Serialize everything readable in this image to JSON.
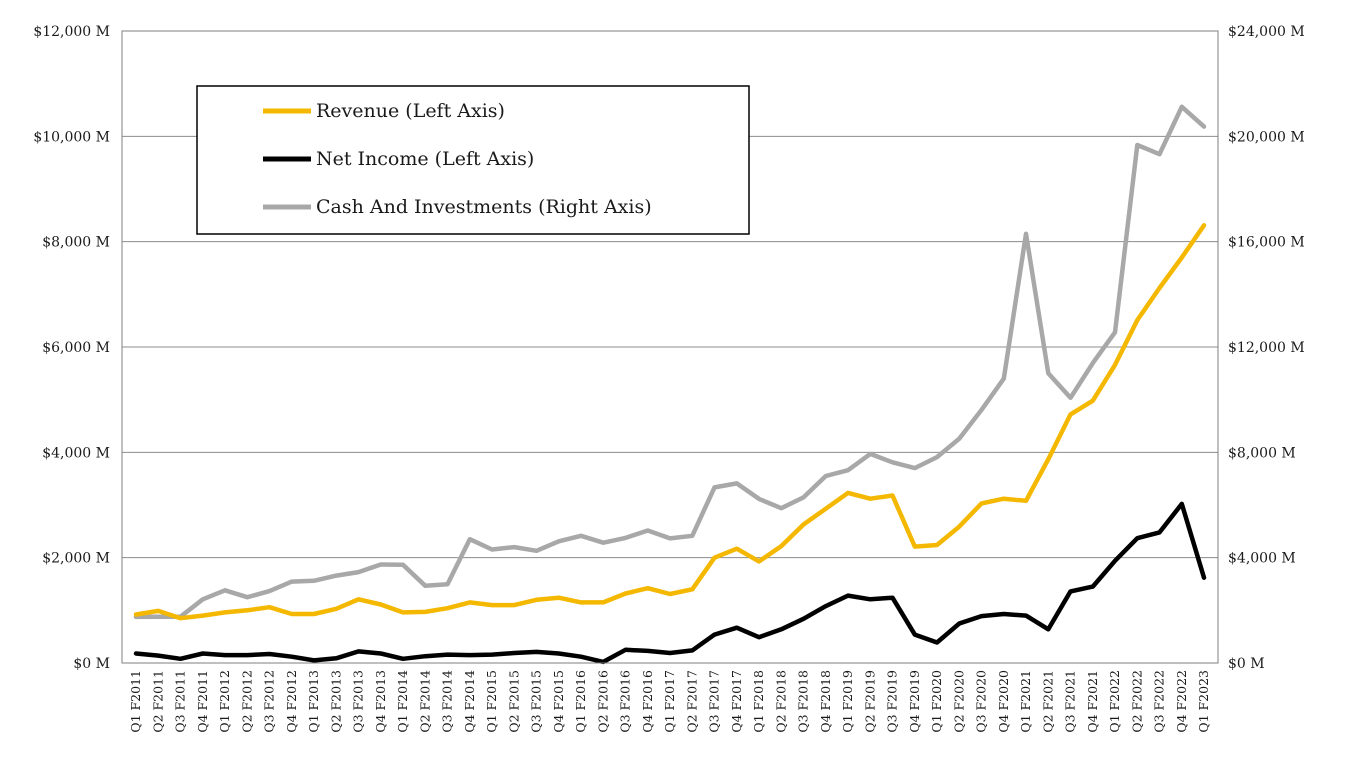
{
  "chart_data": {
    "type": "line",
    "title": "",
    "legend_placement": "top-left",
    "grid": true,
    "left_axis": {
      "ylim": [
        0,
        12000
      ],
      "tick_values": [
        0,
        2000,
        4000,
        6000,
        8000,
        10000,
        12000
      ],
      "tick_labels": [
        "$0 M",
        "$2,000 M",
        "$4,000 M",
        "$6,000 M",
        "$8,000 M",
        "$10,000 M",
        "$12,000 M"
      ]
    },
    "right_axis": {
      "ylim": [
        0,
        24000
      ],
      "tick_values": [
        0,
        4000,
        8000,
        12000,
        16000,
        20000,
        24000
      ],
      "tick_labels": [
        "$0 M",
        "$4,000 M",
        "$8,000 M",
        "$12,000 M",
        "$16,000 M",
        "$20,000 M",
        "$24,000 M"
      ]
    },
    "categories": [
      "Q1 F2011",
      "Q2 F2011",
      "Q3 F2011",
      "Q4 F2011",
      "Q1 F2012",
      "Q2 F2012",
      "Q3 F2012",
      "Q4 F2012",
      "Q1 F2013",
      "Q2 F2013",
      "Q3 F2013",
      "Q4 F2013",
      "Q1 F2014",
      "Q2 F2014",
      "Q3 F2014",
      "Q4 F2014",
      "Q1 F2015",
      "Q2 F2015",
      "Q3 F2015",
      "Q4 F2015",
      "Q1 F2016",
      "Q2 F2016",
      "Q3 F2016",
      "Q4 F2016",
      "Q1 F2017",
      "Q2 F2017",
      "Q3 F2017",
      "Q4 F2017",
      "Q1 F2018",
      "Q2 F2018",
      "Q3 F2018",
      "Q4 F2018",
      "Q1 F2019",
      "Q2 F2019",
      "Q3 F2019",
      "Q4 F2019",
      "Q1 F2020",
      "Q2 F2020",
      "Q3 F2020",
      "Q4 F2020",
      "Q1 F2021",
      "Q2 F2021",
      "Q3 F2021",
      "Q4 F2021",
      "Q1 F2022",
      "Q2 F2022",
      "Q3 F2022",
      "Q4 F2022",
      "Q1 F2023"
    ],
    "series": [
      {
        "name": "Revenue (Left Axis)",
        "axis": "left",
        "color": "#f5b800",
        "values": [
          920,
          990,
          850,
          900,
          960,
          1000,
          1060,
          930,
          930,
          1030,
          1210,
          1110,
          960,
          970,
          1040,
          1150,
          1100,
          1100,
          1200,
          1240,
          1150,
          1150,
          1320,
          1420,
          1310,
          1400,
          2000,
          2170,
          1930,
          2220,
          2630,
          2930,
          3230,
          3120,
          3180,
          2210,
          2240,
          2590,
          3030,
          3120,
          3080,
          3870,
          4720,
          4980,
          5660,
          6510,
          7120,
          7700,
          8310
        ]
      },
      {
        "name": "Net Income (Left Axis)",
        "axis": "left",
        "color": "#000000",
        "values": [
          180,
          140,
          80,
          180,
          150,
          150,
          170,
          120,
          50,
          90,
          220,
          180,
          80,
          130,
          160,
          150,
          160,
          190,
          210,
          180,
          120,
          20,
          250,
          230,
          190,
          240,
          540,
          670,
          490,
          640,
          840,
          1080,
          1280,
          1210,
          1240,
          540,
          390,
          750,
          890,
          930,
          900,
          640,
          1360,
          1450,
          1940,
          2370,
          2480,
          3020,
          1620
        ]
      },
      {
        "name": "Cash And Investments (Right Axis)",
        "axis": "right",
        "color": "#a8a8a8",
        "values": [
          1750,
          1760,
          1760,
          2420,
          2760,
          2500,
          2730,
          3090,
          3120,
          3320,
          3450,
          3740,
          3730,
          2930,
          2990,
          4700,
          4310,
          4400,
          4260,
          4620,
          4830,
          4570,
          4750,
          5030,
          4730,
          4830,
          6670,
          6820,
          6230,
          5880,
          6290,
          7100,
          7320,
          7940,
          7620,
          7400,
          7820,
          8520,
          9610,
          10800,
          16300,
          11000,
          10070,
          11390,
          12560,
          19670,
          19320,
          21120,
          20370
        ]
      }
    ]
  }
}
